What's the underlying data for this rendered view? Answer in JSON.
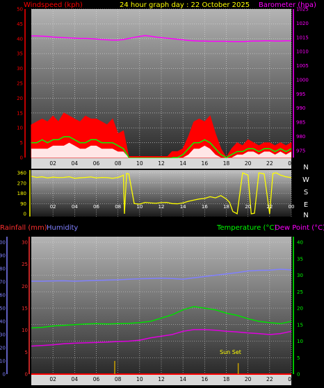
{
  "header": {
    "windspeed_label": "Windspeed (kph)",
    "title": "24 hour graph day : 22 October 2025",
    "barometer_label": "Barometer (hpa)"
  },
  "lower_header": {
    "rainfall_label": "Rainfall (mm)",
    "humidity_label": "Humidity",
    "temperature_label": "Temperature (°C)",
    "dewpoint_label": "Dew Point (°C)"
  },
  "annotation": {
    "sunset": "Sun Set"
  },
  "colors": {
    "windspeed": "#ff0000",
    "gust_fill": "#ff0000",
    "average_line": "#00ff00",
    "lull_fill": "#ffffff",
    "barometer": "#ff00ff",
    "direction": "#ffff00",
    "humidity": "#8080ff",
    "temperature": "#00e000",
    "dewpoint": "#e000e0",
    "rainfall": "#ff0000",
    "rain_axis": "#ff3030",
    "humidity_axis": "#8080ff",
    "temp_axis": "#00ff00",
    "white_axis": "#ffffff"
  },
  "chart_data": [
    {
      "type": "area",
      "name": "wind_barometer",
      "x_ticks": [
        "02",
        "04",
        "06",
        "08",
        "10",
        "12",
        "14",
        "16",
        "18",
        "20",
        "22",
        "00"
      ],
      "left_axis": {
        "label": "Windspeed (kph)",
        "range": [
          0,
          50
        ],
        "ticks": [
          "0",
          "5",
          "10",
          "15",
          "20",
          "25",
          "30",
          "35",
          "40",
          "45",
          "50"
        ]
      },
      "right_axis": {
        "label": "Barometer (hpa)",
        "range": [
          972.5,
          1025
        ],
        "ticks": [
          "975",
          "980",
          "985",
          "990",
          "995",
          "1000",
          "1005",
          "1010",
          "1015",
          "1020",
          "1025"
        ]
      },
      "hours": [
        0,
        0.5,
        1,
        1.5,
        2,
        2.5,
        3,
        3.5,
        4,
        4.5,
        5,
        5.5,
        6,
        6.5,
        7,
        7.5,
        8,
        8.5,
        9,
        9.5,
        10,
        10.5,
        11,
        11.5,
        12,
        12.5,
        13,
        13.5,
        14,
        14.5,
        15,
        15.5,
        16,
        16.5,
        17,
        17.5,
        18,
        18.5,
        19,
        19.5,
        20,
        20.5,
        21,
        21.5,
        22,
        22.5,
        23,
        23.5,
        24
      ],
      "series": [
        {
          "name": "Windspeed (kph)",
          "values": [
            11,
            12,
            13,
            12,
            14,
            12,
            15,
            14,
            13,
            12,
            14,
            13,
            13,
            12,
            11,
            13,
            8,
            9,
            0,
            0,
            0,
            0,
            0,
            0,
            0,
            0,
            2,
            2,
            3,
            7,
            12,
            13,
            12,
            14,
            8,
            3,
            0,
            3,
            5,
            4,
            6,
            5,
            4,
            5,
            5,
            4,
            5,
            4,
            5
          ]
        },
        {
          "name": "Average",
          "values": [
            5,
            5,
            6,
            5,
            6,
            6,
            7,
            7,
            6,
            5,
            5,
            6,
            6,
            5,
            5,
            5,
            4,
            3,
            0,
            0,
            0,
            0,
            0,
            0,
            0,
            0,
            0,
            0,
            1,
            3,
            5,
            5,
            6,
            5,
            3,
            1,
            0,
            1,
            2,
            2,
            3,
            3,
            2,
            3,
            3,
            2,
            3,
            2,
            3
          ]
        },
        {
          "name": "Lull",
          "values": [
            3,
            3,
            3,
            3,
            4,
            4,
            4,
            5,
            4,
            3,
            3,
            4,
            4,
            3,
            3,
            3,
            2,
            2,
            0,
            0,
            0,
            0,
            0,
            0,
            0,
            0,
            0,
            0,
            0,
            1,
            3,
            3,
            4,
            3,
            1,
            0,
            0,
            0,
            1,
            1,
            2,
            2,
            1,
            2,
            2,
            1,
            2,
            1,
            2
          ]
        },
        {
          "name": "Barometer (hpa)",
          "values": [
            1015.5,
            1015.5,
            1015.4,
            1015.3,
            1015.1,
            1015.0,
            1014.9,
            1014.8,
            1014.7,
            1014.6,
            1014.6,
            1014.5,
            1014.4,
            1014.2,
            1014.1,
            1014.0,
            1014.0,
            1014.2,
            1014.6,
            1015.0,
            1015.3,
            1015.6,
            1015.4,
            1015.1,
            1014.9,
            1014.7,
            1014.5,
            1014.3,
            1014.1,
            1013.9,
            1013.8,
            1013.7,
            1013.7,
            1013.6,
            1013.6,
            1013.6,
            1013.6,
            1013.5,
            1013.5,
            1013.5,
            1013.6,
            1013.7,
            1013.7,
            1013.8,
            1013.8,
            1013.7,
            1013.7,
            1013.8,
            1013.8
          ]
        }
      ]
    },
    {
      "type": "line",
      "name": "wind_direction",
      "x_ticks": [
        "02",
        "04",
        "06",
        "08",
        "10",
        "12",
        "14",
        "16",
        "18",
        "20",
        "22",
        "00"
      ],
      "left_axis": {
        "range": [
          0,
          360
        ],
        "ticks": [
          "0",
          "90",
          "180",
          "270",
          "360"
        ]
      },
      "right_axis": {
        "ticks": [
          "N",
          "W",
          "S",
          "E",
          "N"
        ]
      },
      "series": [
        {
          "name": "Wind direction",
          "x": [
            0,
            0.5,
            1,
            1.5,
            2,
            2.5,
            3,
            3.5,
            4,
            4.5,
            5,
            5.5,
            6,
            6.5,
            7,
            7.5,
            8,
            8.3,
            8.5,
            8.6,
            8.8,
            9,
            9.5,
            10,
            10.5,
            11,
            11.5,
            12,
            12.5,
            13,
            13.5,
            14,
            14.5,
            15,
            15.5,
            16,
            16.5,
            17,
            17.5,
            18,
            18.3,
            18.6,
            19,
            19.5,
            20,
            20.3,
            20.6,
            21,
            21.5,
            22,
            22.3,
            22.6,
            23,
            23.5,
            24
          ],
          "values": [
            330,
            320,
            325,
            315,
            322,
            318,
            320,
            326,
            312,
            316,
            320,
            324,
            315,
            320,
            318,
            312,
            320,
            330,
            340,
            0,
            355,
            350,
            90,
            85,
            100,
            95,
            92,
            98,
            100,
            90,
            88,
            95,
            110,
            120,
            130,
            135,
            150,
            140,
            160,
            130,
            100,
            20,
            0,
            360,
            340,
            0,
            5,
            360,
            350,
            0,
            355,
            360,
            340,
            325,
            318
          ]
        }
      ]
    },
    {
      "type": "line",
      "name": "temperature_humidity_rain",
      "x_ticks": [
        "02",
        "04",
        "06",
        "08",
        "10",
        "12",
        "14",
        "16",
        "18",
        "20",
        "22",
        "00"
      ],
      "rain_axis": {
        "label": "Rainfall (mm)",
        "range": [
          0,
          30
        ],
        "ticks": [
          "0",
          "5",
          "10",
          "15",
          "20",
          "25",
          "30"
        ]
      },
      "humidity_axis": {
        "label": "Humidity",
        "range": [
          0,
          100
        ],
        "ticks": [
          "0",
          "10",
          "20",
          "30",
          "40",
          "50",
          "60",
          "70",
          "80",
          "90",
          "100"
        ]
      },
      "temp_axis": {
        "label": "Temperature (°C)",
        "range": [
          0,
          40
        ],
        "ticks": [
          "0",
          "5",
          "10",
          "15",
          "20",
          "25",
          "30",
          "35",
          "40"
        ]
      },
      "hours": [
        0,
        1,
        2,
        3,
        4,
        5,
        6,
        7,
        8,
        9,
        10,
        11,
        12,
        13,
        14,
        15,
        16,
        17,
        18,
        19,
        20,
        21,
        22,
        23,
        24
      ],
      "series": [
        {
          "name": "Humidity",
          "axis": "humidity",
          "values": [
            70.5,
            70.5,
            70.7,
            70.8,
            70.5,
            70.8,
            71,
            71.3,
            71.5,
            72,
            72.3,
            72.5,
            72.8,
            72.5,
            72,
            73,
            74,
            75,
            76,
            77,
            78.2,
            78.7,
            78.8,
            79.5,
            79
          ]
        },
        {
          "name": "Temperature (°C)",
          "axis": "temp",
          "values": [
            14,
            14.2,
            14.6,
            14.8,
            15,
            15.2,
            15.3,
            15.2,
            15.3,
            15.4,
            15.6,
            16,
            17,
            18,
            19.5,
            20.5,
            20,
            19.5,
            18.5,
            17.8,
            16.8,
            16,
            15.6,
            15.3,
            16
          ]
        },
        {
          "name": "Dew Point (°C)",
          "axis": "temp",
          "values": [
            8.5,
            8.7,
            8.9,
            9.2,
            9.4,
            9.5,
            9.6,
            9.7,
            9.9,
            10,
            10.3,
            11,
            11.5,
            12,
            13,
            13.5,
            13.5,
            13.3,
            13,
            12.8,
            12.5,
            12.3,
            12,
            12.3,
            13
          ]
        },
        {
          "name": "Rainfall (mm)",
          "axis": "rain",
          "values": [
            0,
            0,
            0,
            0,
            0,
            0,
            0,
            0,
            0,
            0,
            0,
            0,
            0,
            0,
            0,
            0,
            0,
            0,
            0,
            0,
            0,
            0,
            0,
            0,
            0
          ]
        }
      ],
      "markers": [
        {
          "hour": 7.7,
          "height_mm": 3
        },
        {
          "hour": 19.1,
          "height_mm": 2.5,
          "label": "Sun Set"
        }
      ]
    }
  ]
}
